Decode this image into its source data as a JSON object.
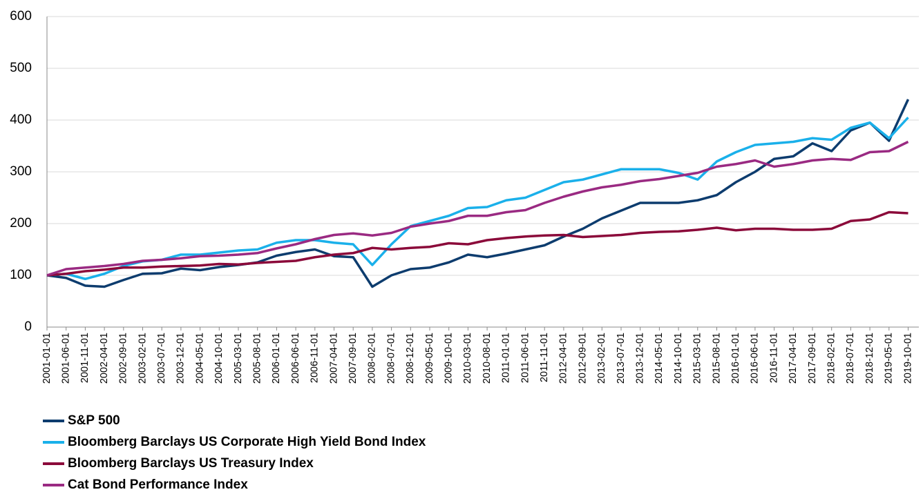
{
  "chart_data": {
    "type": "line",
    "categories": [
      "2001-01-01",
      "2001-06-01",
      "2001-11-01",
      "2002-04-01",
      "2002-09-01",
      "2003-02-01",
      "2003-07-01",
      "2003-12-01",
      "2004-05-01",
      "2004-10-01",
      "2005-03-01",
      "2005-08-01",
      "2006-01-01",
      "2006-06-01",
      "2006-11-01",
      "2007-04-01",
      "2007-09-01",
      "2008-02-01",
      "2008-07-01",
      "2008-12-01",
      "2009-05-01",
      "2009-10-01",
      "2010-03-01",
      "2010-08-01",
      "2011-01-01",
      "2011-06-01",
      "2011-11-01",
      "2012-04-01",
      "2012-09-01",
      "2013-02-01",
      "2013-07-01",
      "2013-12-01",
      "2014-05-01",
      "2014-10-01",
      "2015-03-01",
      "2015-08-01",
      "2016-01-01",
      "2016-06-01",
      "2016-11-01",
      "2017-04-01",
      "2017-09-01",
      "2018-02-01",
      "2018-07-01",
      "2018-12-01",
      "2019-05-01",
      "2019-10-01"
    ],
    "series": [
      {
        "name": "S&P 500",
        "color": "#0d3c6e",
        "values": [
          100,
          95,
          80,
          78,
          91,
          103,
          104,
          113,
          110,
          116,
          120,
          125,
          138,
          145,
          150,
          137,
          135,
          78,
          100,
          112,
          115,
          125,
          140,
          135,
          142,
          150,
          158,
          175,
          190,
          210,
          225,
          240,
          240,
          240,
          245,
          255,
          280,
          300,
          325,
          330,
          355,
          340,
          380,
          395,
          360,
          440
        ]
      },
      {
        "name": "Bloomberg Barclays US Corporate High Yield Bond Index",
        "color": "#1ab0ea",
        "values": [
          100,
          103,
          93,
          103,
          118,
          127,
          130,
          140,
          140,
          144,
          148,
          150,
          163,
          168,
          168,
          163,
          160,
          120,
          160,
          195,
          205,
          215,
          230,
          232,
          245,
          250,
          265,
          280,
          285,
          295,
          305,
          305,
          305,
          298,
          285,
          320,
          338,
          352,
          355,
          358,
          365,
          362,
          385,
          395,
          365,
          405
        ]
      },
      {
        "name": "Bloomberg Barclays US Treasury Index",
        "color": "#8b0a3a",
        "values": [
          100,
          103,
          108,
          111,
          115,
          115,
          117,
          118,
          119,
          122,
          121,
          124,
          126,
          128,
          135,
          140,
          143,
          153,
          150,
          153,
          155,
          162,
          160,
          168,
          172,
          175,
          177,
          178,
          174,
          176,
          178,
          182,
          184,
          185,
          188,
          192,
          187,
          190,
          190,
          188,
          188,
          190,
          205,
          208,
          222,
          220
        ]
      },
      {
        "name": "Cat Bond Performance Index",
        "color": "#9a2a82",
        "values": [
          100,
          112,
          115,
          118,
          122,
          128,
          130,
          133,
          137,
          138,
          140,
          143,
          152,
          160,
          170,
          178,
          181,
          177,
          182,
          194,
          200,
          205,
          215,
          215,
          222,
          226,
          240,
          252,
          262,
          270,
          275,
          282,
          286,
          292,
          298,
          310,
          315,
          322,
          310,
          315,
          322,
          325,
          323,
          338,
          340,
          358
        ]
      }
    ],
    "ylim": [
      0,
      600
    ],
    "yticks": [
      0,
      100,
      200,
      300,
      400,
      500,
      600
    ],
    "grid": true,
    "legend": "bottom"
  }
}
